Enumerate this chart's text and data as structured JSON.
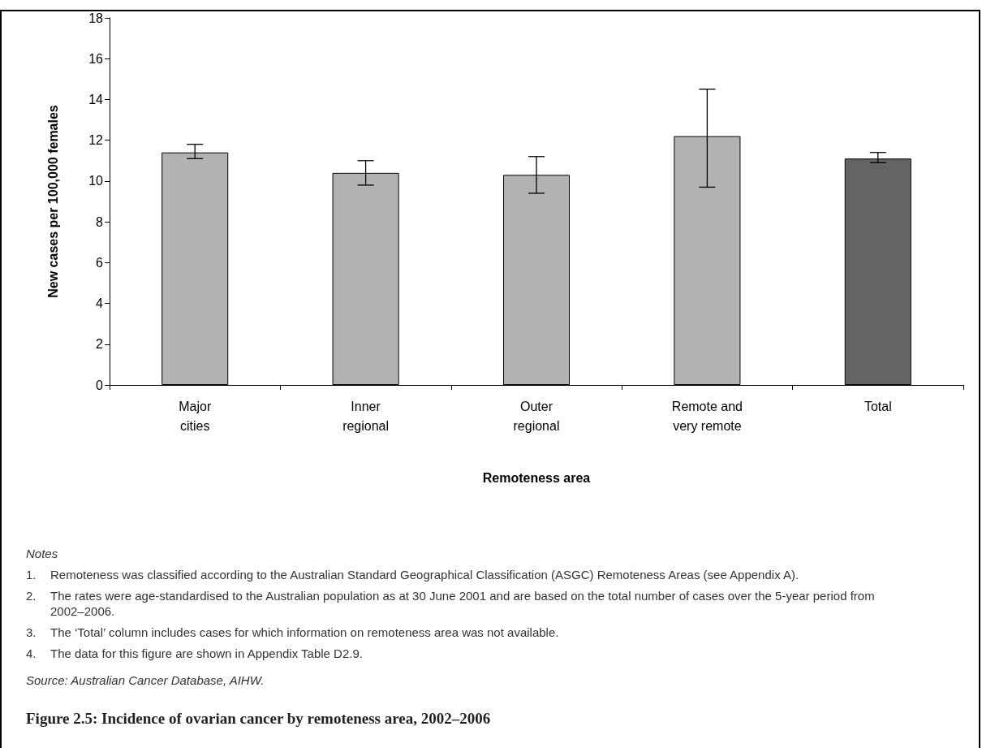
{
  "chart_data": {
    "type": "bar",
    "title": "Figure 2.5: Incidence of ovarian cancer by remoteness area, 2002–2006",
    "xlabel": "Remoteness area",
    "ylabel": "New cases per 100,000 females",
    "categories": [
      "Major cities",
      "Inner regional",
      "Outer regional",
      "Remote and very remote",
      "Total"
    ],
    "values": [
      11.4,
      10.4,
      10.3,
      12.2,
      11.1
    ],
    "colors": [
      "#b2b2b2",
      "#b2b2b2",
      "#b2b2b2",
      "#b2b2b2",
      "#646464"
    ],
    "errors": [
      [
        11.1,
        11.8
      ],
      [
        9.8,
        11.0
      ],
      [
        9.4,
        11.2
      ],
      [
        9.7,
        14.5
      ],
      [
        10.9,
        11.4
      ]
    ],
    "ylim": [
      0,
      18
    ],
    "yticks": [
      0,
      2,
      4,
      6,
      8,
      10,
      12,
      14,
      16,
      18
    ],
    "grid": false,
    "annotations": [
      "Notes",
      "1.\tRemoteness was classified according to the Australian Standard Geographical Classification (ASGC) Remoteness Areas (see Appendix A).",
      "2.\tThe rates were age-standardised to the Australian population as at 30 June 2001 and are based on the total number of cases over the 5-year period from 2002–2006.",
      "3.\tThe ‘Total’ column includes cases for which information on remoteness area was not available.",
      "4.\tThe data for this figure are shown in Appendix Table D2.9.",
      "Source: Australian Cancer Database, AIHW."
    ]
  }
}
